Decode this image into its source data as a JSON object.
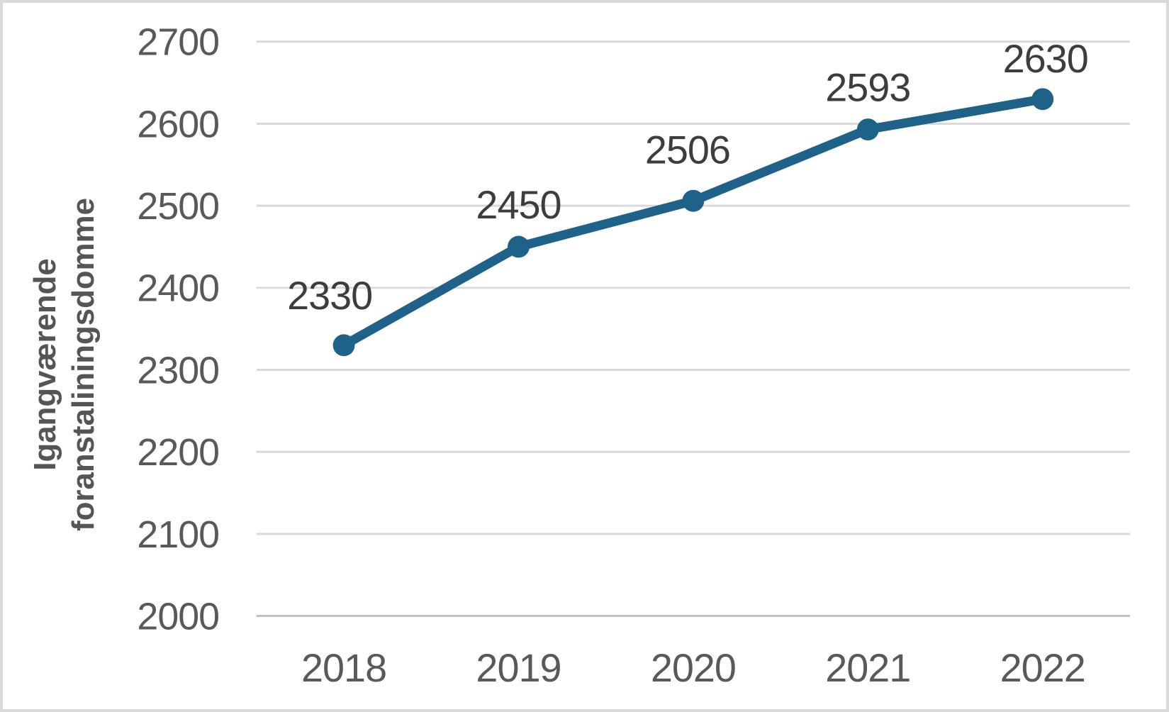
{
  "chart_data": {
    "type": "line",
    "title": "",
    "xlabel": "",
    "ylabel": "Igangværende foranstaliningsdomme",
    "ylabel_lines": [
      "Igangværende",
      "foranstaliningsdomme"
    ],
    "categories": [
      "2018",
      "2019",
      "2020",
      "2021",
      "2022"
    ],
    "values": [
      2330,
      2450,
      2506,
      2593,
      2630
    ],
    "data_labels": [
      "2330",
      "2450",
      "2506",
      "2593",
      "2630"
    ],
    "yticks": [
      2000,
      2100,
      2200,
      2300,
      2400,
      2500,
      2600,
      2700
    ],
    "ylim": [
      2000,
      2700
    ],
    "grid": "horizontal-only",
    "legend": "none",
    "colors": {
      "line": "#1E6189",
      "marker": "#1E6189",
      "gridline": "#D9D9D9",
      "baseline": "#C2C2C2",
      "tick_label": "#595959",
      "data_label": "#3D3D3D",
      "axis_title": "#555555",
      "background": "#FFFFFF",
      "frame_border": "#D9D9D9"
    }
  }
}
